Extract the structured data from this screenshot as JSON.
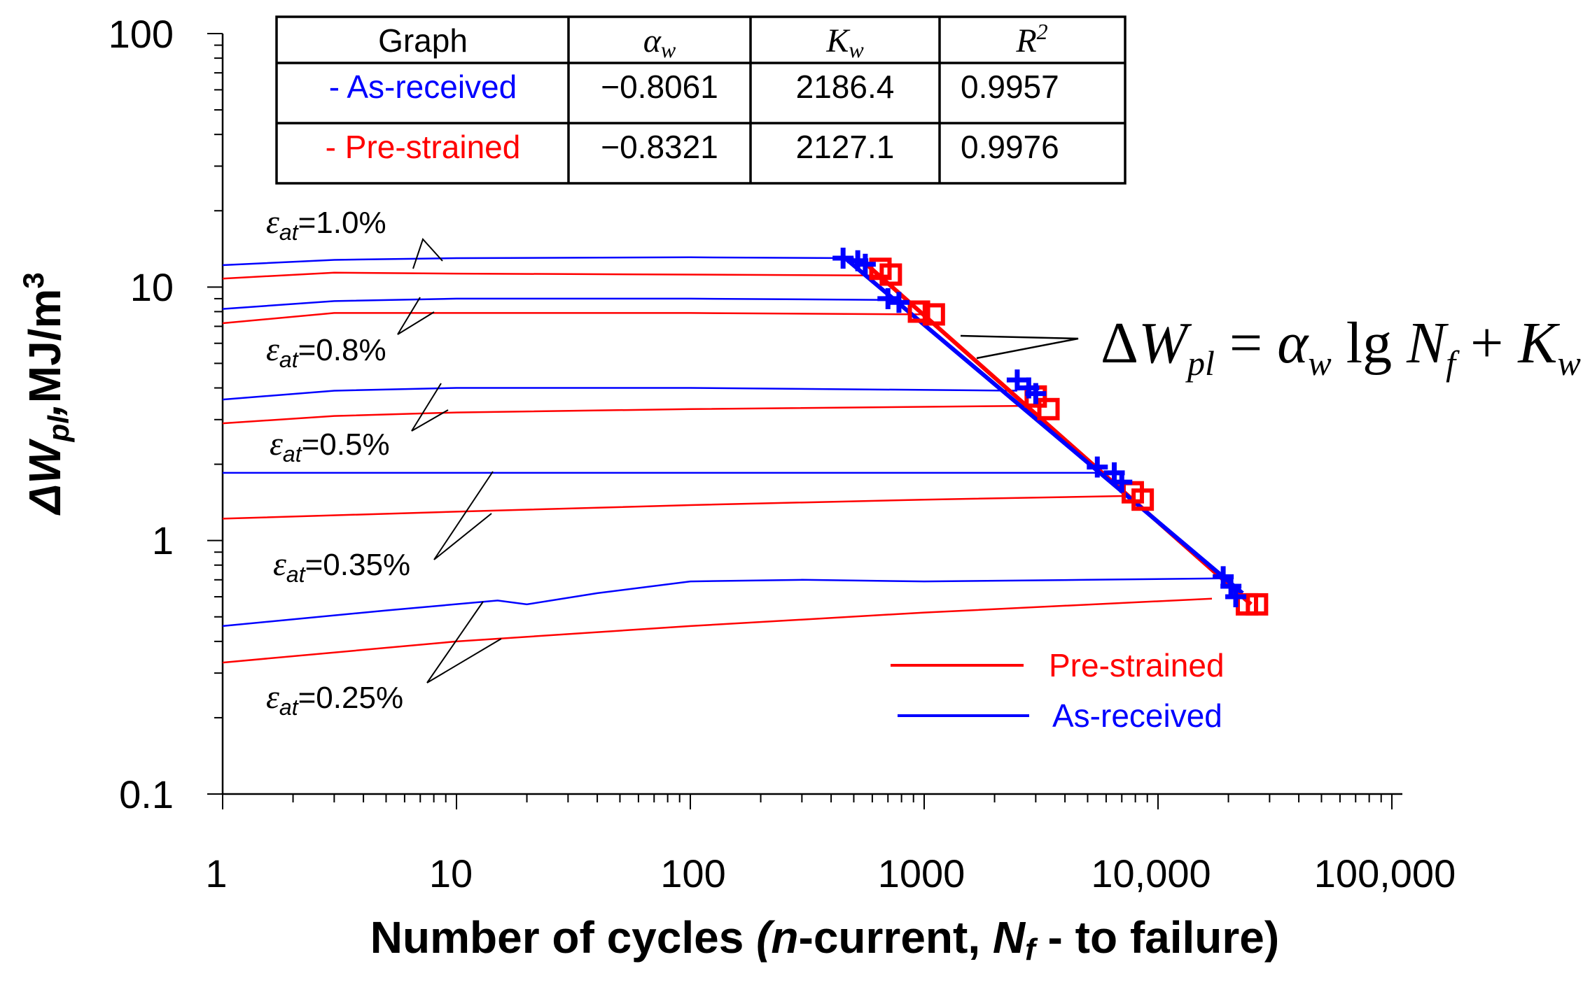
{
  "chart_data": {
    "type": "line",
    "title": "",
    "xlabel": "Number of cycles (n-current, Nf - to failure)",
    "xlabel_parts": {
      "p1": "Number of cycles ",
      "p2": "(",
      "p3": "n",
      "p4": "-current, ",
      "p5": "N",
      "p6": "f",
      "p7": " - to failure)"
    },
    "ylabel": "ΔWpl,MJ/m3",
    "ylabel_parts": {
      "delta": "Δ",
      "w": "W",
      "sub": "pl",
      "comma": ",",
      "unit": "MJ/m",
      "sup": "3"
    },
    "x_scale": "log",
    "y_scale": "log",
    "xlim": [
      1,
      100000
    ],
    "ylim": [
      0.1,
      100
    ],
    "x_tick_labels": [
      "1",
      "10",
      "100",
      "1000",
      "10,000",
      "100,000"
    ],
    "y_tick_labels": [
      "0.1",
      "1",
      "10",
      "100"
    ],
    "colors": {
      "as_received": "#0000ff",
      "pre_strained": "#ff0000",
      "axis": "#000000"
    },
    "table": {
      "headers": [
        "Graph",
        "αw",
        "Kw",
        "R2"
      ],
      "header_alpha": "α",
      "header_alpha_sub": "w",
      "header_k": "K",
      "header_k_sub": "w",
      "header_r": "R",
      "header_r_sup": "2",
      "rows": [
        {
          "name": "- As-received",
          "alpha_w": "−0.8061",
          "k_w": "2186.4",
          "r2": "0.9957",
          "color": "#0000ff"
        },
        {
          "name": "- Pre-strained",
          "alpha_w": "−0.8321",
          "k_w": "2127.1",
          "r2": "0.9976",
          "color": "#ff0000"
        }
      ]
    },
    "formula": {
      "lhs_delta": "Δ",
      "lhs_w": "W",
      "lhs_sub": "pl",
      "eq": " = ",
      "alpha": "α",
      "alpha_sub": "w",
      "lg": " lg ",
      "n": "N",
      "n_sub": "f",
      "plus": " + ",
      "k": "K",
      "k_sub": "w"
    },
    "strain_amplitudes": [
      {
        "label_eps": "ε",
        "label_sub": "at",
        "label_value": "=1.0%"
      },
      {
        "label_eps": "ε",
        "label_sub": "at",
        "label_value": "=0.8%"
      },
      {
        "label_eps": "ε",
        "label_sub": "at",
        "label_value": "=0.5%"
      },
      {
        "label_eps": "ε",
        "label_sub": "at",
        "label_value": "=0.35%"
      },
      {
        "label_eps": "ε",
        "label_sub": "at",
        "label_value": "=0.25%"
      }
    ],
    "series": [
      {
        "name": "As-received ε=1.0%",
        "group": "as_received",
        "points": [
          [
            1,
            12.2
          ],
          [
            3,
            12.8
          ],
          [
            10,
            13.0
          ],
          [
            100,
            13.1
          ],
          [
            500,
            13.0
          ]
        ]
      },
      {
        "name": "Pre-strained ε=1.0%",
        "group": "pre_strained",
        "points": [
          [
            1,
            10.8
          ],
          [
            3,
            11.4
          ],
          [
            10,
            11.3
          ],
          [
            100,
            11.2
          ],
          [
            700,
            11.1
          ]
        ]
      },
      {
        "name": "As-received ε=0.8%",
        "group": "as_received",
        "points": [
          [
            1,
            8.2
          ],
          [
            3,
            8.8
          ],
          [
            10,
            9.0
          ],
          [
            100,
            9.0
          ],
          [
            700,
            8.9
          ]
        ]
      },
      {
        "name": "Pre-strained ε=0.8%",
        "group": "pre_strained",
        "points": [
          [
            1,
            7.2
          ],
          [
            3,
            7.9
          ],
          [
            10,
            7.9
          ],
          [
            100,
            7.9
          ],
          [
            1000,
            7.8
          ]
        ]
      },
      {
        "name": "As-received ε=0.5%",
        "group": "as_received",
        "points": [
          [
            1,
            3.6
          ],
          [
            3,
            3.9
          ],
          [
            10,
            4.0
          ],
          [
            100,
            4.0
          ],
          [
            2500,
            3.9
          ]
        ]
      },
      {
        "name": "Pre-strained ε=0.5%",
        "group": "pre_strained",
        "points": [
          [
            1,
            2.9
          ],
          [
            3,
            3.1
          ],
          [
            10,
            3.2
          ],
          [
            100,
            3.3
          ],
          [
            2800,
            3.4
          ]
        ]
      },
      {
        "name": "As-received ε=0.35%",
        "group": "as_received",
        "points": [
          [
            1,
            1.85
          ],
          [
            10,
            1.85
          ],
          [
            100,
            1.85
          ],
          [
            6000,
            1.85
          ]
        ]
      },
      {
        "name": "Pre-strained ε=0.35%",
        "group": "pre_strained",
        "points": [
          [
            1,
            1.22
          ],
          [
            10,
            1.3
          ],
          [
            100,
            1.38
          ],
          [
            1000,
            1.45
          ],
          [
            7500,
            1.5
          ]
        ]
      },
      {
        "name": "As-received ε=0.25%",
        "group": "as_received",
        "points": [
          [
            1,
            0.46
          ],
          [
            5,
            0.53
          ],
          [
            15,
            0.58
          ],
          [
            20,
            0.56
          ],
          [
            40,
            0.62
          ],
          [
            100,
            0.69
          ],
          [
            300,
            0.7
          ],
          [
            1000,
            0.69
          ],
          [
            5000,
            0.7
          ],
          [
            20000,
            0.71
          ]
        ]
      },
      {
        "name": "Pre-strained ε=0.25%",
        "group": "pre_strained",
        "points": [
          [
            1,
            0.33
          ],
          [
            10,
            0.4
          ],
          [
            100,
            0.46
          ],
          [
            1000,
            0.52
          ],
          [
            17000,
            0.59
          ]
        ]
      }
    ],
    "failure_points": {
      "as_received": [
        [
          450,
          13.0
        ],
        [
          520,
          12.7
        ],
        [
          560,
          12.3
        ],
        [
          700,
          9.0
        ],
        [
          780,
          8.7
        ],
        [
          2500,
          4.3
        ],
        [
          2800,
          4.0
        ],
        [
          3000,
          3.8
        ],
        [
          5500,
          1.95
        ],
        [
          6500,
          1.85
        ],
        [
          7000,
          1.7
        ],
        [
          19000,
          0.72
        ],
        [
          20500,
          0.66
        ],
        [
          21500,
          0.6
        ]
      ],
      "pre_strained": [
        [
          650,
          11.8
        ],
        [
          720,
          11.2
        ],
        [
          950,
          8.0
        ],
        [
          1100,
          7.8
        ],
        [
          3000,
          3.7
        ],
        [
          3400,
          3.3
        ],
        [
          7800,
          1.55
        ],
        [
          8600,
          1.45
        ],
        [
          24000,
          0.56
        ],
        [
          26500,
          0.56
        ]
      ]
    },
    "fits": {
      "as_received": {
        "alpha_w": -0.8061,
        "k_w": 2186.4,
        "points": [
          [
            450,
            13.2
          ],
          [
            23000,
            0.62
          ]
        ]
      },
      "pre_strained": {
        "alpha_w": -0.8321,
        "k_w": 2127.1,
        "points": [
          [
            550,
            12.6
          ],
          [
            25000,
            0.56
          ]
        ]
      }
    },
    "legend": [
      {
        "label": "Pre-strained",
        "group": "pre_strained"
      },
      {
        "label": "As-received",
        "group": "as_received"
      }
    ],
    "legend_position": "bottom-right"
  }
}
